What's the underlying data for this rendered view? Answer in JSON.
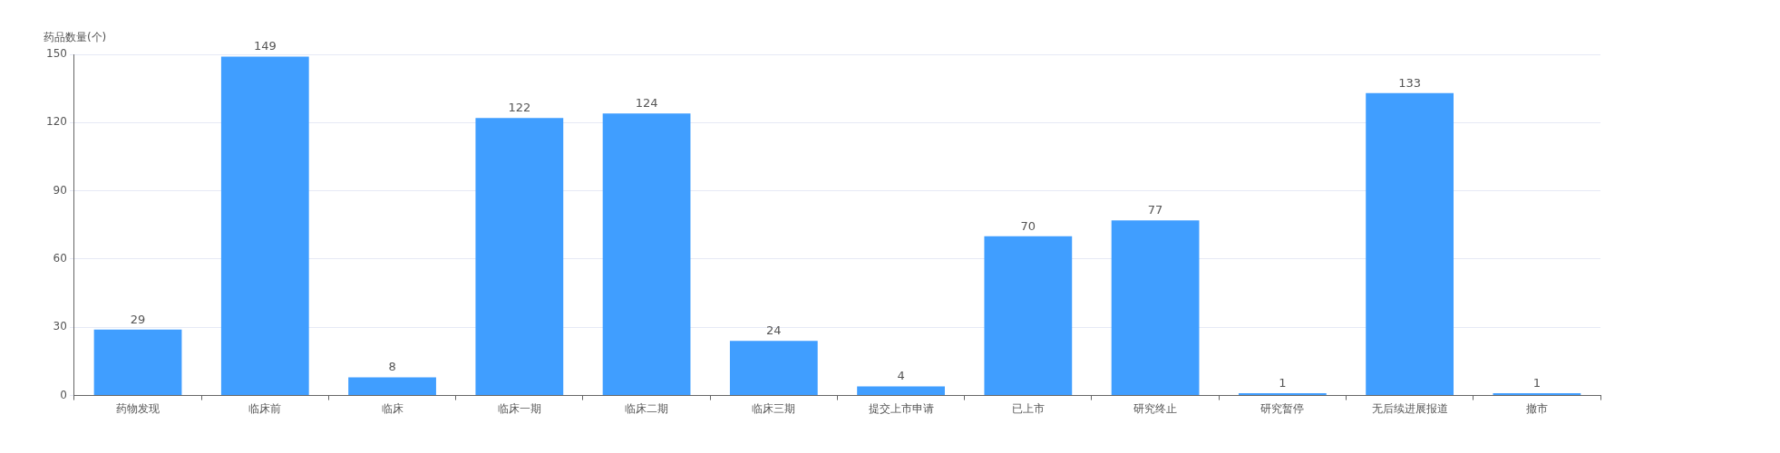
{
  "chart_data": {
    "type": "bar",
    "ylabel": "药品数量(个)",
    "categories": [
      "药物发现",
      "临床前",
      "临床",
      "临床一期",
      "临床二期",
      "临床三期",
      "提交上市申请",
      "已上市",
      "研究终止",
      "研究暂停",
      "无后续进展报道",
      "撤市"
    ],
    "values": [
      29,
      149,
      8,
      122,
      124,
      24,
      4,
      70,
      77,
      1,
      133,
      1
    ],
    "color": "#409eff",
    "ylim": [
      0,
      150
    ],
    "yticks": [
      0,
      30,
      60,
      90,
      120,
      150
    ],
    "grid": "y",
    "data_labels": true
  }
}
